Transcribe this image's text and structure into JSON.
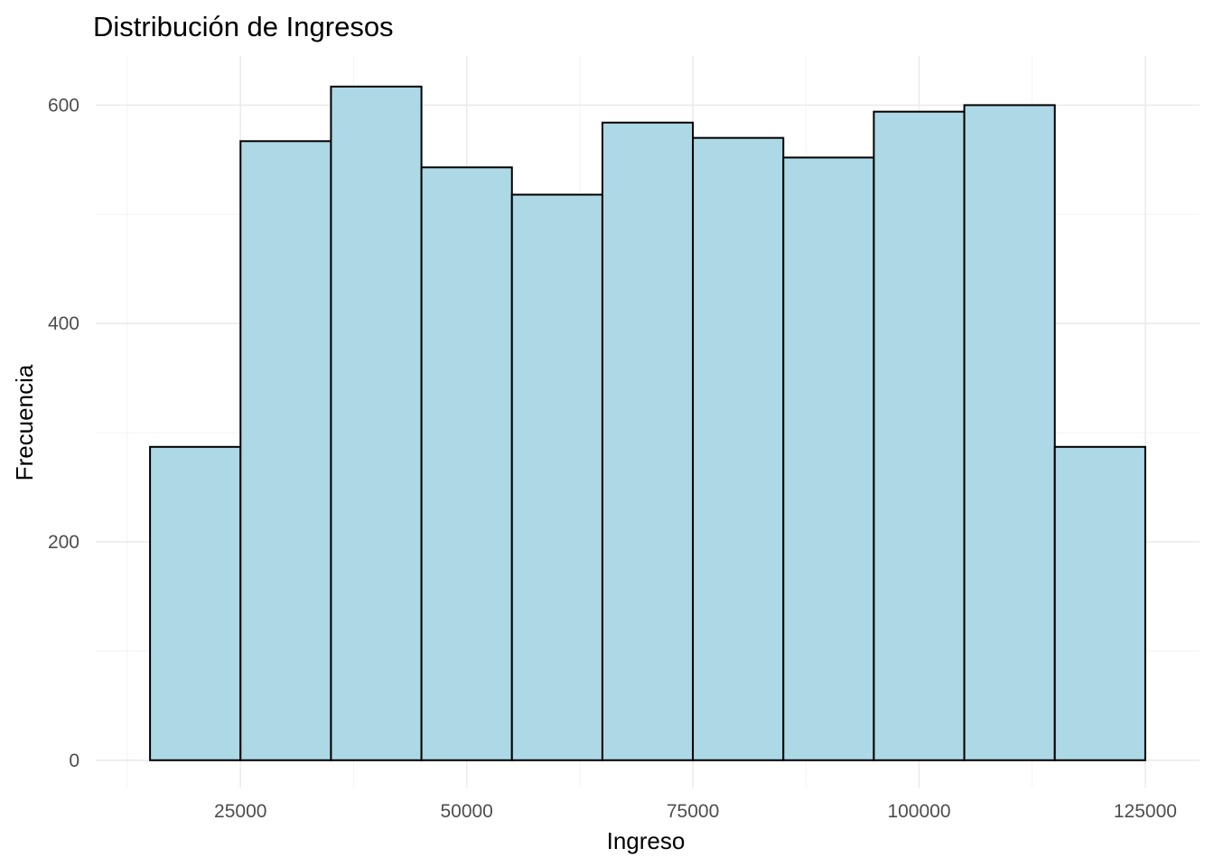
{
  "chart_data": {
    "type": "bar",
    "title": "Distribución de Ingresos",
    "xlabel": "Ingreso",
    "ylabel": "Frecuencia",
    "bin_edges": [
      15000,
      25000,
      35000,
      45000,
      55000,
      65000,
      75000,
      85000,
      95000,
      105000,
      115000,
      125000
    ],
    "values": [
      287,
      567,
      617,
      543,
      518,
      584,
      570,
      552,
      594,
      600,
      287
    ],
    "xlim": [
      9000,
      131000
    ],
    "ylim": [
      -25,
      645
    ],
    "x_ticks": [
      25000,
      50000,
      75000,
      100000,
      125000
    ],
    "x_tick_labels": [
      "25000",
      "50000",
      "75000",
      "100000",
      "125000"
    ],
    "x_minor_ticks": [
      12500,
      37500,
      62500,
      87500,
      112500
    ],
    "y_ticks": [
      0,
      200,
      400,
      600
    ],
    "y_tick_labels": [
      "0",
      "200",
      "400",
      "600"
    ],
    "y_minor_ticks": [
      100,
      300,
      500
    ],
    "grid": true,
    "bar_fill": "#add8e6",
    "bar_outline": "#000000"
  }
}
